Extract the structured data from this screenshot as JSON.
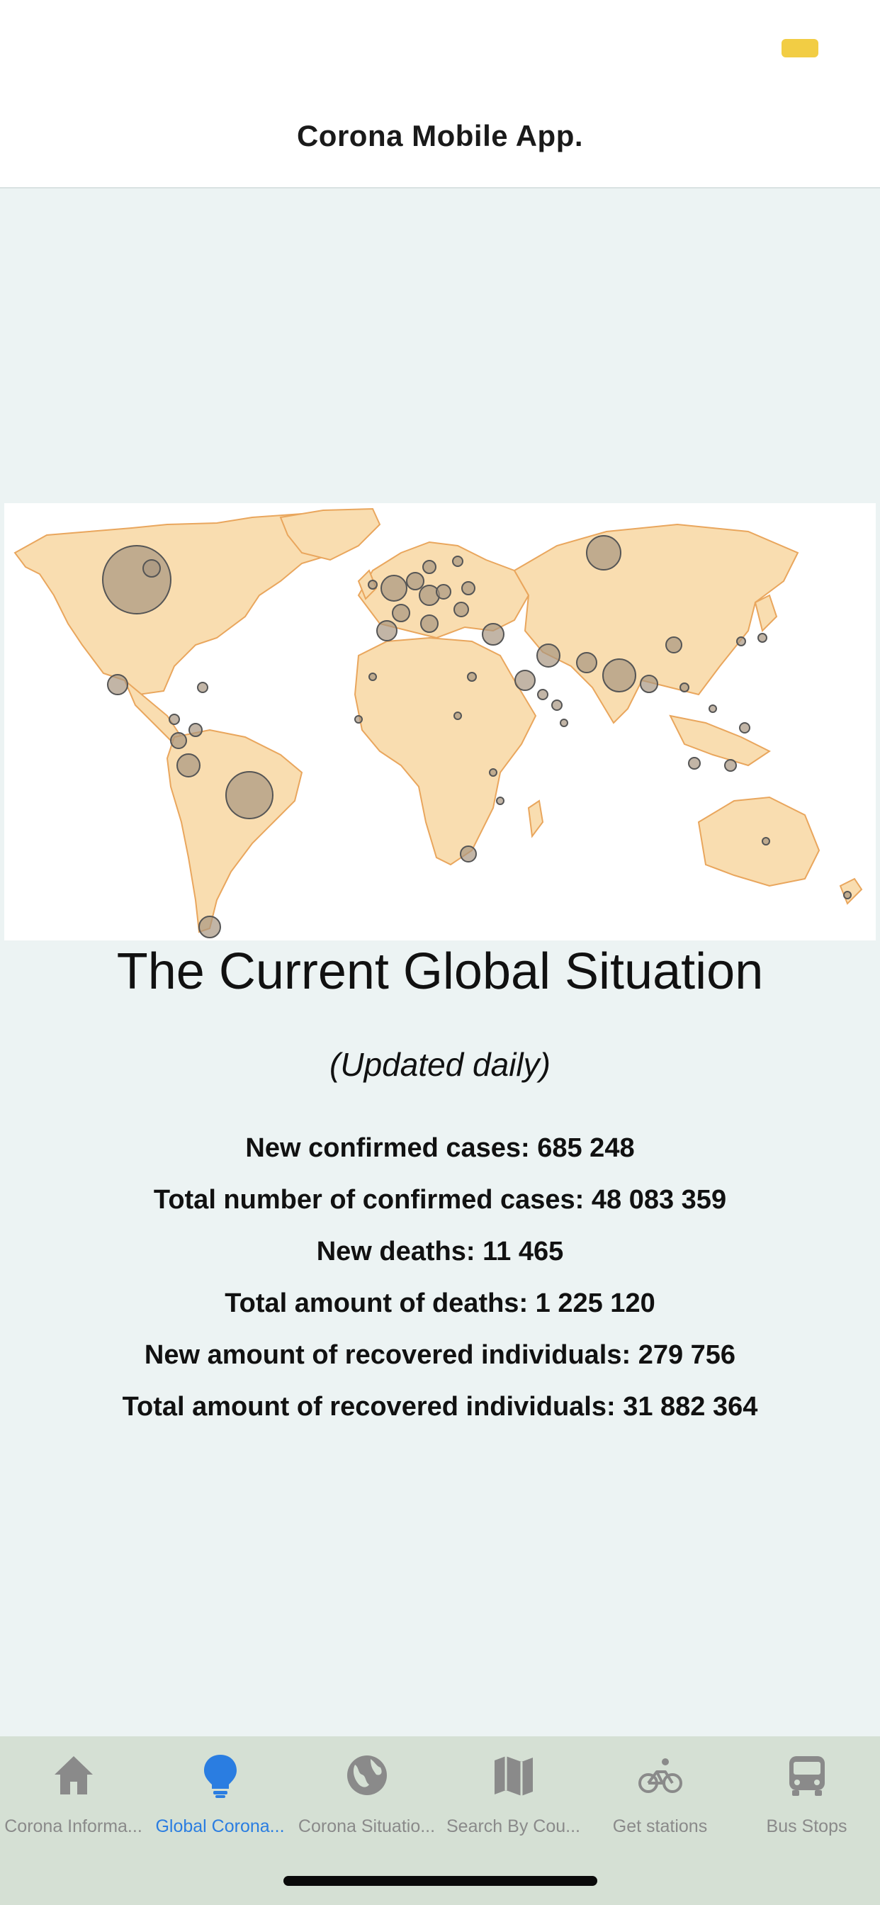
{
  "header": {
    "title": "Corona Mobile App."
  },
  "main": {
    "title": "The Current Global Situation",
    "subtitle": "(Updated daily)",
    "stats": [
      "New confirmed cases: 685 248",
      "Total number of confirmed cases: 48 083 359",
      "New deaths: 11 465",
      "Total amount of deaths: 1 225 120",
      "New amount of recovered individuals: 279 756",
      "Total amount of recovered individuals: 31 882 364"
    ]
  },
  "map": {
    "icon": "world-map-cases-bubbles",
    "land_color": "#f9ddb0",
    "border_color": "#e9a65d",
    "bubble_color": "#a89680"
  },
  "tabs": [
    {
      "label": "Corona Informa...",
      "icon": "home-icon",
      "active": false
    },
    {
      "label": "Global Corona...",
      "icon": "lightbulb-icon",
      "active": true
    },
    {
      "label": "Corona Situatio...",
      "icon": "globe-icon",
      "active": false
    },
    {
      "label": "Search By Cou...",
      "icon": "map-icon",
      "active": false
    },
    {
      "label": "Get stations",
      "icon": "bicycle-icon",
      "active": false
    },
    {
      "label": "Bus Stops",
      "icon": "bus-icon",
      "active": false
    }
  ],
  "colors": {
    "accent": "#2a7de1",
    "inactive": "#8a8a8a",
    "tabbar_bg": "#d5e0d4",
    "page_bg": "#ecf3f3"
  }
}
